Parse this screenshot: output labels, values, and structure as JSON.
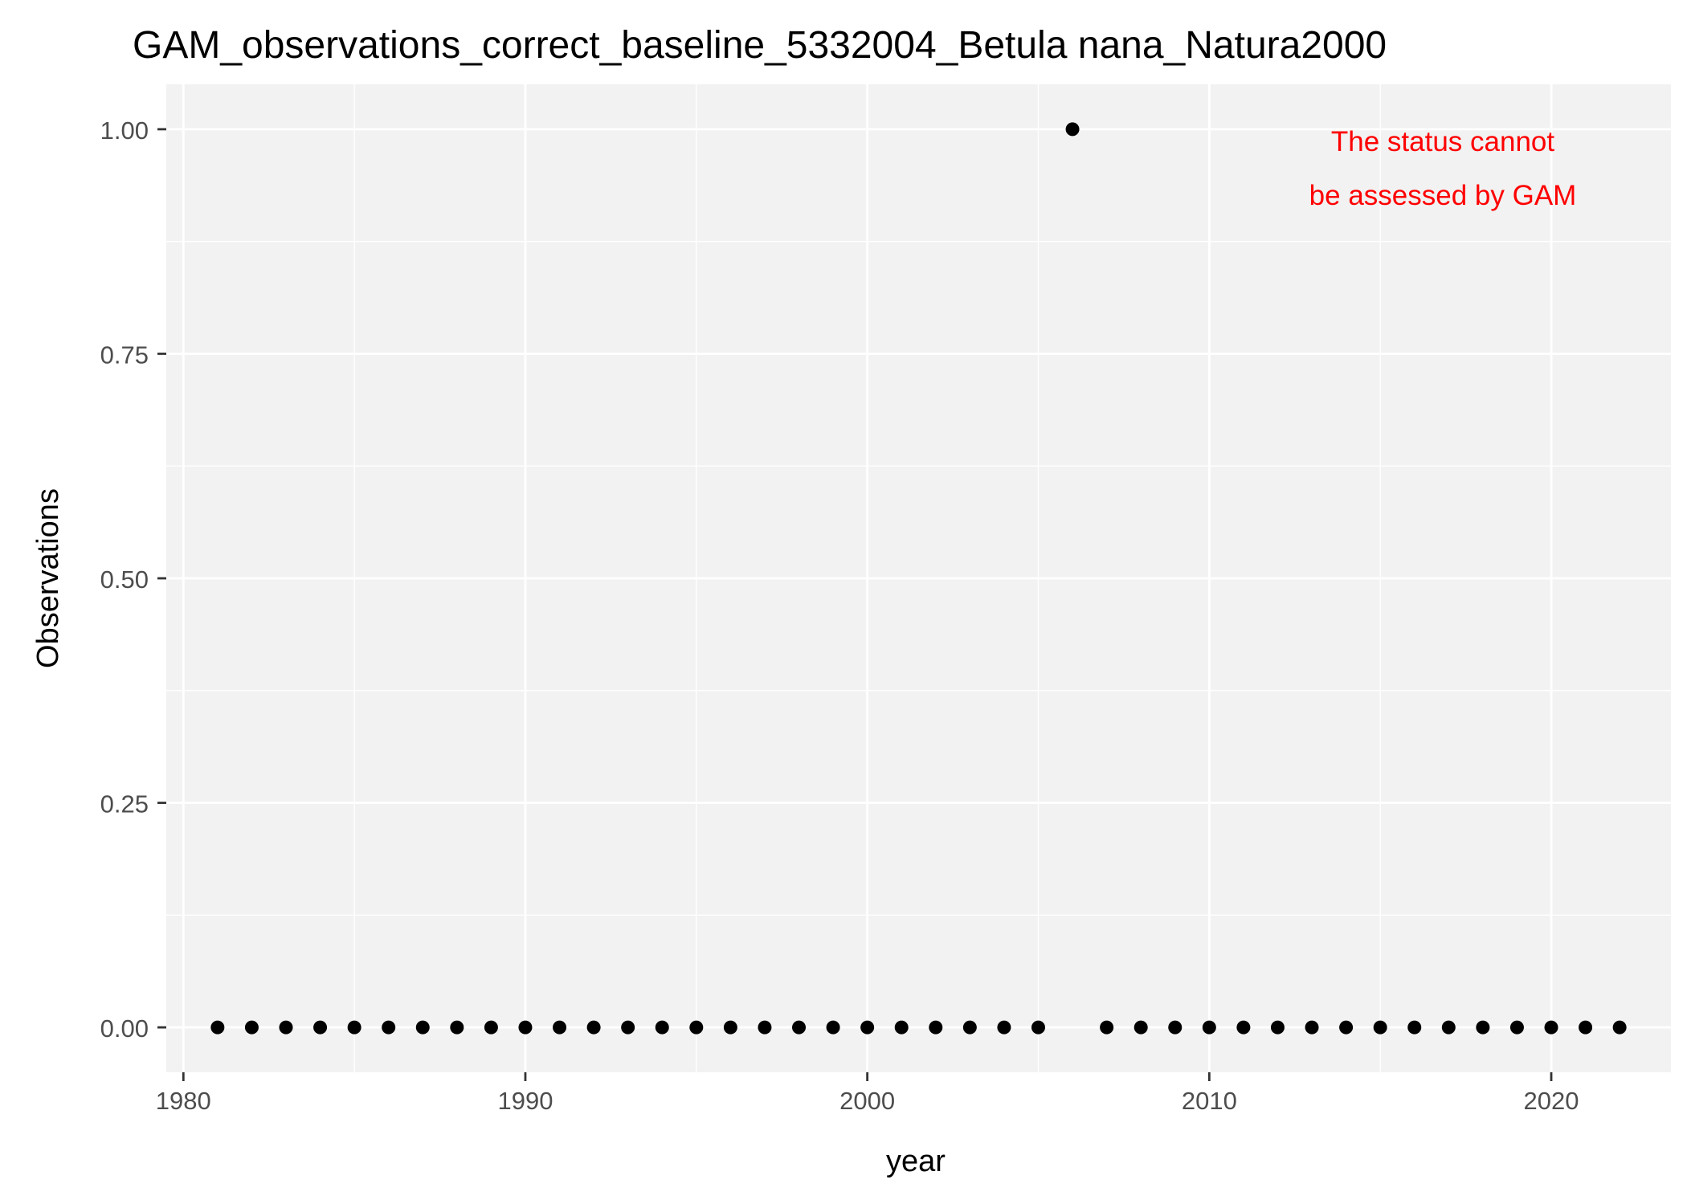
{
  "chart_data": {
    "type": "scatter",
    "title": "GAM_observations_correct_baseline_5332004_Betula nana_Natura2000",
    "xlabel": "year",
    "ylabel": "Observations",
    "xlim": [
      1979.5,
      2023.5
    ],
    "ylim": [
      -0.05,
      1.05
    ],
    "x_ticks": [
      1980,
      1990,
      2000,
      2010,
      2020
    ],
    "y_ticks": [
      0,
      0.25,
      0.5,
      0.75,
      1
    ],
    "y_tick_labels": [
      "0.00",
      "0.25",
      "0.50",
      "0.75",
      "1.00"
    ],
    "grid": true,
    "legend": "none",
    "annotation": {
      "lines": [
        "The status cannot",
        "be assessed by GAM"
      ],
      "color": "#ff0000",
      "placement": "top-right"
    },
    "colors": {
      "panel": "#f2f2f2",
      "grid": "#ffffff",
      "points": "#000000"
    },
    "series": [
      {
        "x": [
          1981,
          1982,
          1983,
          1984,
          1985,
          1986,
          1987,
          1988,
          1989,
          1990,
          1991,
          1992,
          1993,
          1994,
          1995,
          1996,
          1997,
          1998,
          1999,
          2000,
          2001,
          2002,
          2003,
          2004,
          2005,
          2006,
          2007,
          2008,
          2009,
          2010,
          2011,
          2012,
          2013,
          2014,
          2015,
          2016,
          2017,
          2018,
          2019,
          2020,
          2021,
          2022
        ],
        "y": [
          0,
          0,
          0,
          0,
          0,
          0,
          0,
          0,
          0,
          0,
          0,
          0,
          0,
          0,
          0,
          0,
          0,
          0,
          0,
          0,
          0,
          0,
          0,
          0,
          0,
          1,
          0,
          0,
          0,
          0,
          0,
          0,
          0,
          0,
          0,
          0,
          0,
          0,
          0,
          0,
          0,
          0
        ]
      }
    ]
  }
}
